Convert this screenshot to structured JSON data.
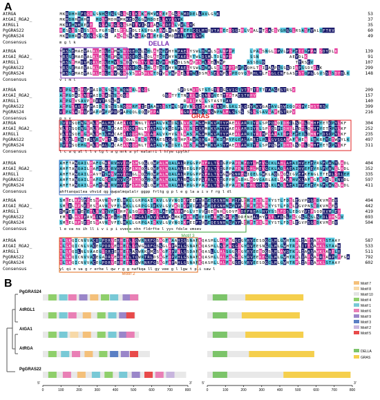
{
  "panel_a": {
    "letter": "A",
    "domain_labels": {
      "della": "DELLA",
      "gras": "GRAS",
      "motif1": "Motif 1",
      "motif2": "Motif 2",
      "motif3": "Motif 3"
    },
    "blocks": [
      {
        "rows": [
          {
            "name": "AtRGA",
            "seq": "MKRDHHQFQGRLSNHGTSSSSSSISKDKMMMVKKEEDGGGNMDDELLAVLGYK",
            "num": "53"
          },
          {
            "name": "AtGAI_RGA2_",
            "seq": "MKRDHHHHHH..MQSKMDHHMKKEDGGGNMDDELLAVLGYK",
            "num": "37"
          },
          {
            "name": "AtRGL1",
            "seq": "MKREHNHREEE..SSAGEGGSSSMTTVIKEEAAGVDELLVVLGYK",
            "num": "35"
          },
          {
            "name": "PgGRAS22",
            "seq": "HESSSSSSSSRSLPGPSSELEILEDLIASPGAFAWLHNAKREFQCQLMTVVTAHEEDSGIRLVHALHTCACSVGHGGLRSASFVALQFTRV",
            "num": "60"
          },
          {
            "name": "PgGRAS24",
            "seq": "MKRDHRHGQCSSSGGG..AGGSSSAGKAKEEEEDGGMDDELLAVLGYK",
            "num": "49"
          }
        ],
        "consensus": "                                             m       g     l     k"
      },
      {
        "rows": [
          {
            "name": "AtRGA",
            "seq": "VRSSEMAEVALKLEQLETMMSNVQEDGLSHLATDTVHYNPAELYSWLDNMLSELNPPP.....LPASSNGLDPVLPSPEICGFPA.SDYDLK",
            "num": "139"
          },
          {
            "name": "AtGAI_RGA2_",
            "seq": "VRSSEMAEVALKLEQLETMMSNVQEDGLSQLATDTVHYNPAELYTWLDSMLTDLNPP......SSN..........AEYDLK",
            "num": "91"
          },
          {
            "name": "AtRGL1",
            "seq": "VRSSDMADVAQKLEQLEMVLSNDDVGSTVLNDSVHYNPSDLSNWVESMLSELNNP.......ASSDLD..........TTRSCV",
            "num": "107"
          },
          {
            "name": "PgGRAS22",
            "seq": "VRSSEMAEVALKLEQLETMMGNVQEDGLSHLATDTVHYNPAELYSWLDNMLSELNPPTPPPVQHLTSIEAAPSSSSDIAPSSDYDLK",
            "num": "299"
          },
          {
            "name": "PgGRAS24",
            "seq": "VRSSEMAEVALKLEQLEGVGGDGVSRFSHLMTDTVHYNPSELYTWLDSMLSELNPLFPDQVQLRHLTLFSGLCNFGASESTQPGLGVSSLSDYDLK",
            "num": "148"
          }
        ],
        "consensus": "   v  l                           m           l"
      },
      {
        "rows": [
          {
            "name": "AtRGA",
            "seq": "VIPGSAIYQFPAIDSSSSSNNQNKRLKSCS.........SPDSMVTSTSTGTQIGGVIGTVTTTTTTTTAAGESTRSV",
            "num": "209"
          },
          {
            "name": "AtGAI_RGA2_",
            "seq": "AIPGDAILNQFAIDSASSSNQGG...........GGDTYTTNKRLKCSNGVVETTTATAESTRHV",
            "num": "157"
          },
          {
            "name": "AtRGL1",
            "seq": "AIPGIVSAVPEDRVTRSSKK.....................RTRIESELSTASTRAV",
            "num": "140"
          },
          {
            "name": "PgGRAS22",
            "seq": "AIPGSAVYQFPAIDSSSSSSNQQKRFKIEEAAHSSSTMLSPVVNSGEEAVAINSHLGKLILQIVRKVGAEAVLSWIQQFQPYIHSTRSV",
            "num": "399"
          },
          {
            "name": "PgGRAS24",
            "seq": "VIPGSAIYQFPAPPPPPPDPFAPQQLQQQPEPA.......RGRRMKTSSGSNPNLMLSSSS.SSSSSAVGAPESTRPV",
            "num": "216"
          }
        ],
        "consensus": "     p                                                          s         v"
      },
      {
        "rows": [
          {
            "name": "AtRGA",
            "seq": "IVVDSQENGVRLVHALMACAEAIQQNNLTLAEALVKQIGCLAVSQAGAMRKVATYFAEALARRIYRLSPPQNQIDHCLSDTLQMHFYETCPYLKF",
            "num": "304"
          },
          {
            "name": "AtGAI_RGA2_",
            "seq": "VLVDSQENGVRLVHALLACAEAVQKENLTVAEALVKQIGFLAVSQIGAMRKVATYFAEALARRIYRLSPSQSPIDHSLSDTLQMHFYETCPYLKF",
            "num": "252"
          },
          {
            "name": "AtRGL1",
            "seq": "VLVDSQETGVRLVHTLMACAEAIQQENLKLADALVKHVGLLAASQAGAMRKVATYFAEALARRIYRIHPSAAAIDPSFEEILQMNFYDSCPYLKF",
            "num": "235"
          },
          {
            "name": "PgGRAS22",
            "seq": "VLVDLEENTAGVRMVHTLLGSAQALHEGDLALAESLGVQLHPLAAAQAGAMRKIAMYFGEALARRILPLLGVSGAHAFAHEN.LRKRFYETWPYLKF",
            "num": "497"
          },
          {
            "name": "PgGRAS24",
            "seq": "IVVDSQEMGVRLVHALLACAEAVQQENLTLAEALVKQIGYLAVSQAGAMRKVASYFAEALARRIYRLSPPQSPIDHSLSDTLQMHFYETCPYLKF",
            "num": "311"
          }
        ],
        "consensus": "      l  c a q  al l       l v  lg l  a   g  mrk a yf ealarri           l     hfye cpylkf"
      },
      {
        "rows": [
          {
            "name": "AtRGA",
            "seq": "AHFTANQAILEAFQGKKRVHVIDFSMSQGLQWPALMQALALRPGGPPVFRLTGIGPPAPDNFDYLHEVGCKLAHLAEAIHVEFEYRGFVANTLADLDA",
            "num": "404"
          },
          {
            "name": "AtGAI_RGA2_",
            "seq": "AHFTANQAILEAFEGKKRVHVIDFSMNQGLQWPALMQALALREGGPPSFRLTGIGPPAPDNSDHLHEVGCKLAQLAEAIHVEFEYRGFVANSLADLDA",
            "num": "352"
          },
          {
            "name": "AtRGL1",
            "seq": "AHFTANQAILEAVTTSRVVHVIDLGLNQGMQWPALMQALALRPGGPPSFRLTGVGNPSNREGIQELGWKLAQLAQAIGVEFKFNGLTTERLSDLEP",
            "num": "335"
          },
          {
            "name": "PgGRAS22",
            "seq": "AHFTANQAILEAFGGCERVHVVDFSMKQGMQWPALMQALALRAGGPPSFRLTGIGPPHPSDHLHDVGARLAELAAKAHVKLAFRGFAADSRENVDL",
            "num": "597"
          },
          {
            "name": "PgGRAS24",
            "seq": "AHFTANQAILEAFEGKKRVHVIDFSMNQGLQWPALMQALALRPGGPPAFRLTGIGPPAPDNSDHLQEVGLKLAQLAEAIHVEFEYRGFVANSLADLDA",
            "num": "411"
          }
        ],
        "consensus": "ahftanqailea       vhvid    qg qwpalmqalalr ggpp frltg g p       l e g  la  a  i v f  rg      l dl"
      },
      {
        "rows": [
          {
            "name": "AtRGA",
            "seq": "SMLELRPSEIESVAVNSVFELHKLLGRPGAIDKVLGVVNQIKPEIFTVVEQESNHNSPIFLDRFTESLHYYSTLFDSLEGVPSGQDKVMSEV",
            "num": "494"
          },
          {
            "name": "AtGAI_RGA2_",
            "seq": "SMLDLRPSEIESVAVNSVFELHKLLGRPGGIEKVLGVVKQIKPVIFTVVEQESNHNGPVFLDRFTESLHYYSTLFDSLEGVPNSQDKVMSEV",
            "num": "442"
          },
          {
            "name": "AtRGL1",
            "seq": "DMFETRTESETLVVNSVFELHPVLSQPGSIEKLLATVKAVKPGLVTVVEQEANHNGDVFLDRFNEALHYYSSLFDSLEDGVVIPSQDRVMSEV",
            "num": "419"
          },
          {
            "name": "PgGRAS22",
            "seq": "EMLTLHSTEAVAINSVFELHRLLAQPGAIEKVLGAVKAMKPRVMTVVEQEANHNSPSFLDRFNEALHYYSTLFDSLEGCGGGSSLSEDLVMSEV",
            "num": "693"
          },
          {
            "name": "PgGRAS24",
            "seq": "SMLELRPSEIESVAVNSVFELHKLLGRPGAIDKVLGVVNQIKPEIFTVVEQESNHNGPVFLDRFTESLHYYSTLFDSLEGVPSGQDKVMSEV",
            "num": "504"
          }
        ],
        "consensus": "      l     e va ns  ih ll       i     v   i p  i  vveqe nhn    fldrfte l yys   fdsle          vmsev"
      },
      {
        "rows": [
          {
            "name": "AtRGA",
            "seq": "YLGKQICNVVACDGPDRVERHETLSQWRNRFGSAGFAAAHIGSNAFKQASMLLALFNGGEGYRVEESDGCLMLGWHTRPLIATSAWKLSTAAY",
            "num": "587"
          },
          {
            "name": "AtGAI_RGA2_",
            "seq": "YLGKQICNLVACEGPDRVERHETLSQWGNRFGSSGLAPAHLGSNAFKQASMLLSVFNSGQGYRVEESNGCLMLGWHTRPLITTSAWKLSTAAH",
            "num": "533"
          },
          {
            "name": "AtRGL1",
            "seq": "YLGRQILNLVAAEGSDRIERHETLAQWRKRMGSAGFDPVNLGSDAFKQASLLLALSGGGDGYRVEENDGSLMLAWQTKPLIAASAWKLAAELR",
            "num": "511"
          },
          {
            "name": "PgGRAS22",
            "seq": "YLGRQICNVVACEGADRVERHETLTQWRTRLDSAGFDPVHLGSNAFKQASMLLALFAGGDGYRVEEKEGCLMLGWHTRPLIATSAWRLAAPVTFGAQ",
            "num": "792"
          },
          {
            "name": "PgGRAS24",
            "seq": "YLGKQICNVVACEGPDRVERHETLSQWRNRFGSAGFAPAHLGSNAFKQASMLLALFNGGEGYRVEESDGCLMLGWHTRPLIATSAWKLSTAAY",
            "num": "602"
          }
        ],
        "consensus": "yl  qi n va  g  r erhe  l qw  r  g  g           nafkqa  ll       gy vee  g l lgw t pli  saw l"
      }
    ],
    "consensus_label": "Consensus"
  },
  "panel_b": {
    "letter": "B",
    "genes": [
      "PgGRAS24",
      "AtRGL1",
      "AtGA1",
      "AtRGA",
      "PgGRAS22"
    ],
    "axis_ticks": [
      "0",
      "100",
      "200",
      "300",
      "400",
      "500",
      "600",
      "700",
      "800"
    ],
    "axis_end_left": "3'",
    "axis_start_left": "5'",
    "motif_legend": [
      {
        "label": "Motif 7",
        "color": "#f4c07a"
      },
      {
        "label": "Motif 8",
        "color": "#f7d9a8"
      },
      {
        "label": "Motif 10",
        "color": "#e3e3e3"
      },
      {
        "label": "Motif 4",
        "color": "#8fcf6b"
      },
      {
        "label": "Motif 1",
        "color": "#78c9d6"
      },
      {
        "label": "Motif 6",
        "color": "#e97fb5"
      },
      {
        "label": "Motif 9",
        "color": "#9a86c9"
      },
      {
        "label": "Motif 3",
        "color": "#5b7fc4"
      },
      {
        "label": "Motif 2",
        "color": "#c8b5de"
      },
      {
        "label": "Motif 5",
        "color": "#e84a4a"
      }
    ],
    "domain_legend": [
      {
        "label": "DELLA",
        "color": "#7cc46a"
      },
      {
        "label": "GRAS",
        "color": "#f5cf4d"
      }
    ],
    "motif_tracks": [
      {
        "length": 530,
        "blocks": [
          [
            30,
            "#8fcf6b"
          ],
          [
            90,
            "#78c9d6"
          ],
          [
            140,
            "#e97fb5"
          ],
          [
            200,
            "#9a86c9"
          ],
          [
            260,
            "#f4c07a"
          ],
          [
            320,
            "#8fcf6b"
          ],
          [
            370,
            "#78c9d6"
          ],
          [
            440,
            "#9a86c9"
          ],
          [
            480,
            "#e97fb5"
          ]
        ]
      },
      {
        "length": 510,
        "blocks": [
          [
            30,
            "#8fcf6b"
          ],
          [
            90,
            "#78c9d6"
          ],
          [
            140,
            "#e97fb5"
          ],
          [
            220,
            "#f4c07a"
          ],
          [
            300,
            "#8fcf6b"
          ],
          [
            360,
            "#78c9d6"
          ],
          [
            420,
            "#9a86c9"
          ],
          [
            460,
            "#e84a4a"
          ]
        ]
      },
      {
        "length": 530,
        "blocks": [
          [
            30,
            "#8fcf6b"
          ],
          [
            90,
            "#78c9d6"
          ],
          [
            150,
            "#f7d9a8"
          ],
          [
            220,
            "#f4c07a"
          ],
          [
            300,
            "#8fcf6b"
          ],
          [
            360,
            "#78c9d6"
          ],
          [
            420,
            "#9a86c9"
          ],
          [
            460,
            "#e97fb5"
          ]
        ]
      },
      {
        "length": 590,
        "blocks": [
          [
            30,
            "#8fcf6b"
          ],
          [
            100,
            "#78c9d6"
          ],
          [
            160,
            "#e97fb5"
          ],
          [
            230,
            "#f4c07a"
          ],
          [
            310,
            "#8fcf6b"
          ],
          [
            370,
            "#5b7fc4"
          ],
          [
            430,
            "#9a86c9"
          ],
          [
            480,
            "#e84a4a"
          ]
        ]
      },
      {
        "length": 790,
        "blocks": [
          [
            30,
            "#8fcf6b"
          ],
          [
            110,
            "#e97fb5"
          ],
          [
            190,
            "#f4c07a"
          ],
          [
            270,
            "#78c9d6"
          ],
          [
            340,
            "#8fcf6b"
          ],
          [
            420,
            "#78c9d6"
          ],
          [
            490,
            "#9a86c9"
          ],
          [
            560,
            "#e84a4a"
          ],
          [
            620,
            "#e97fb5"
          ],
          [
            680,
            "#c8b5de"
          ]
        ]
      }
    ],
    "domain_tracks": [
      {
        "length": 530,
        "della": [
          30,
          110
        ],
        "gras": [
          210,
          530
        ]
      },
      {
        "length": 510,
        "della": [
          30,
          110
        ],
        "gras": [
          190,
          510
        ]
      },
      {
        "length": 530,
        "della": [
          30,
          110
        ],
        "gras": [
          210,
          530
        ]
      },
      {
        "length": 590,
        "della": [
          30,
          110
        ],
        "gras": [
          230,
          590
        ]
      },
      {
        "length": 790,
        "della": [
          30,
          110
        ],
        "gras": [
          420,
          790
        ]
      }
    ]
  }
}
